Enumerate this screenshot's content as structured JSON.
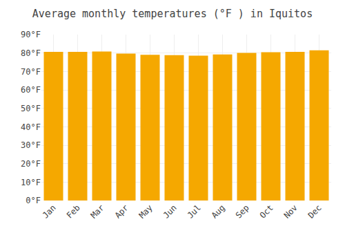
{
  "chart_data": {
    "type": "bar",
    "title": "Average monthly temperatures (°F ) in Iquitos",
    "categories": [
      "Jan",
      "Feb",
      "Mar",
      "Apr",
      "May",
      "Jun",
      "Jul",
      "Aug",
      "Sep",
      "Oct",
      "Nov",
      "Dec"
    ],
    "values": [
      80.6,
      80.6,
      80.8,
      79.7,
      79.0,
      78.8,
      78.6,
      79.2,
      80.1,
      80.4,
      80.6,
      81.5
    ],
    "color": "#F5A800",
    "ylim": [
      0,
      90
    ],
    "yticks": [
      {
        "value": 0,
        "label": "0°F"
      },
      {
        "value": 10,
        "label": "10°F"
      },
      {
        "value": 20,
        "label": "20°F"
      },
      {
        "value": 30,
        "label": "30°F"
      },
      {
        "value": 40,
        "label": "40°F"
      },
      {
        "value": 50,
        "label": "50°F"
      },
      {
        "value": 60,
        "label": "60°F"
      },
      {
        "value": 70,
        "label": "70°F"
      },
      {
        "value": 80,
        "label": "80°F"
      },
      {
        "value": 90,
        "label": "90°F"
      }
    ],
    "grid": true
  }
}
